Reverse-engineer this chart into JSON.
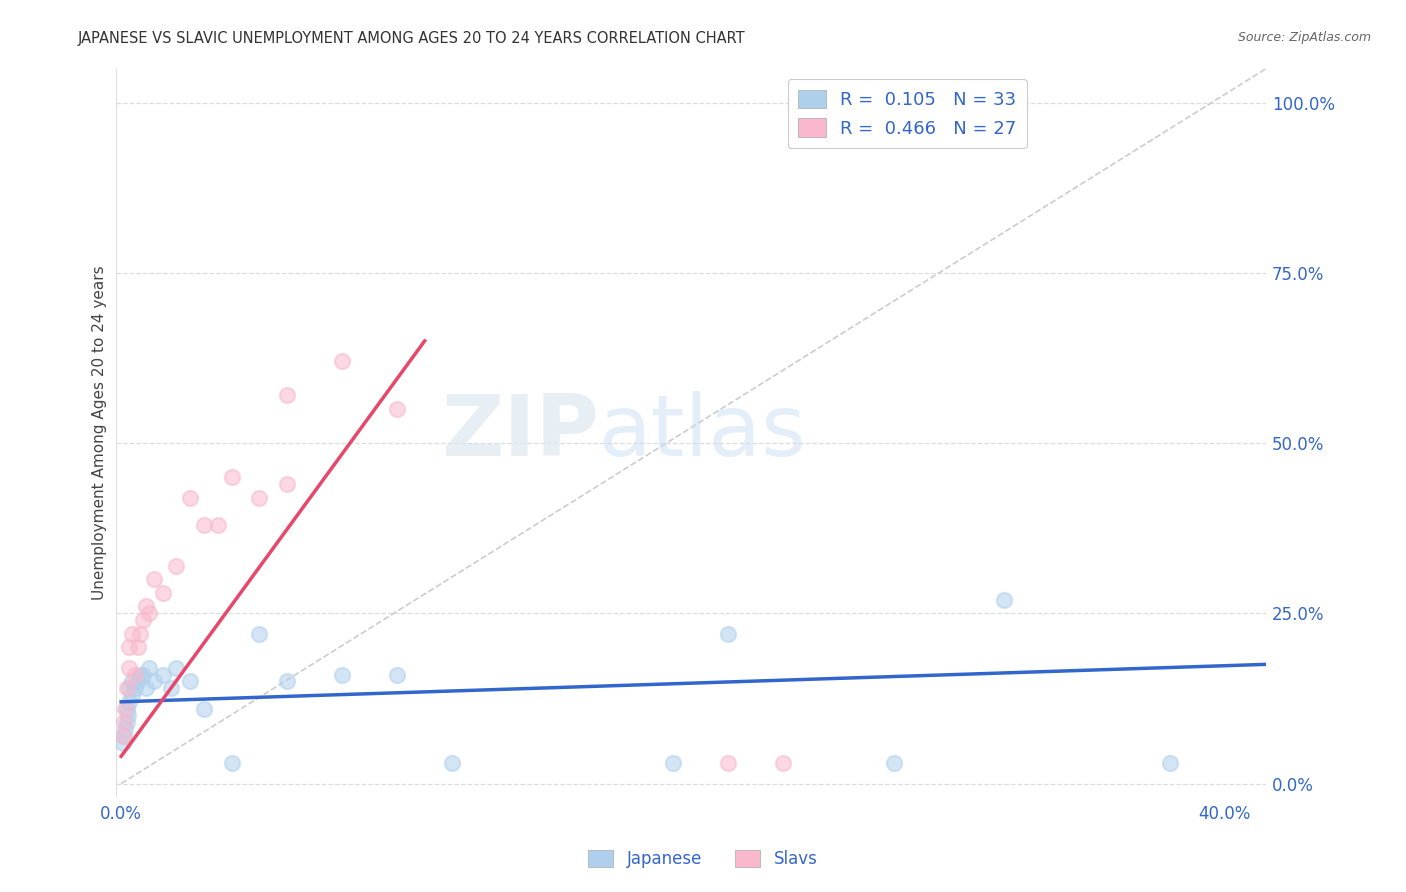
{
  "title": "JAPANESE VS SLAVIC UNEMPLOYMENT AMONG AGES 20 TO 24 YEARS CORRELATION CHART",
  "source": "Source: ZipAtlas.com",
  "ylabel": "Unemployment Among Ages 20 to 24 years",
  "xlabel_ticks": [
    "0.0%",
    "40.0%"
  ],
  "xlabel_vals": [
    0.0,
    0.4
  ],
  "ylabel_ticks": [
    "0.0%",
    "25.0%",
    "50.0%",
    "75.0%",
    "100.0%"
  ],
  "ylabel_vals": [
    0.0,
    0.25,
    0.5,
    0.75,
    1.0
  ],
  "xlim": [
    -0.002,
    0.415
  ],
  "ylim": [
    -0.02,
    1.05
  ],
  "japanese_R": 0.105,
  "japanese_N": 33,
  "slavic_R": 0.466,
  "slavic_N": 27,
  "japanese_color": "#afd0ec",
  "slavic_color": "#f9b8cc",
  "japanese_line_color": "#3366cc",
  "slavic_line_color": "#e8476a",
  "diagonal_color": "#cccccc",
  "legend_color": "#3366cc",
  "title_color": "#333333",
  "background_color": "#ffffff",
  "grid_color": "#dddddd",
  "japanese_x": [
    0.0005,
    0.001,
    0.0015,
    0.002,
    0.002,
    0.0025,
    0.003,
    0.003,
    0.004,
    0.004,
    0.005,
    0.006,
    0.007,
    0.008,
    0.009,
    0.01,
    0.012,
    0.015,
    0.018,
    0.02,
    0.025,
    0.03,
    0.04,
    0.05,
    0.06,
    0.08,
    0.1,
    0.12,
    0.2,
    0.22,
    0.28,
    0.32,
    0.38
  ],
  "japanese_y": [
    0.06,
    0.07,
    0.08,
    0.09,
    0.11,
    0.1,
    0.12,
    0.14,
    0.13,
    0.15,
    0.14,
    0.15,
    0.16,
    0.16,
    0.14,
    0.17,
    0.15,
    0.16,
    0.14,
    0.17,
    0.15,
    0.11,
    0.03,
    0.22,
    0.15,
    0.16,
    0.16,
    0.03,
    0.03,
    0.22,
    0.03,
    0.27,
    0.03
  ],
  "slavic_x": [
    0.0005,
    0.001,
    0.0015,
    0.002,
    0.003,
    0.003,
    0.004,
    0.005,
    0.006,
    0.007,
    0.008,
    0.009,
    0.01,
    0.012,
    0.015,
    0.02,
    0.025,
    0.03,
    0.035,
    0.04,
    0.05,
    0.06,
    0.06,
    0.08,
    0.1,
    0.22,
    0.24
  ],
  "slavic_y": [
    0.07,
    0.09,
    0.11,
    0.14,
    0.17,
    0.2,
    0.22,
    0.16,
    0.2,
    0.22,
    0.24,
    0.26,
    0.25,
    0.3,
    0.28,
    0.32,
    0.42,
    0.38,
    0.38,
    0.45,
    0.42,
    0.57,
    0.44,
    0.62,
    0.55,
    0.03,
    0.03
  ],
  "slavic_line_x0": 0.0,
  "slavic_line_y0": 0.04,
  "slavic_line_x1": 0.11,
  "slavic_line_y1": 0.65,
  "japanese_line_x0": 0.0,
  "japanese_line_y0": 0.12,
  "japanese_line_x1": 0.415,
  "japanese_line_y1": 0.175,
  "marker_size": 120,
  "alpha": 0.55,
  "watermark_zip": "ZIP",
  "watermark_atlas": "atlas",
  "legend_R1": "R = ",
  "legend_R1_val": "0.105",
  "legend_N1": "  N = ",
  "legend_N1_val": "33",
  "legend_R2": "R = ",
  "legend_R2_val": "0.466",
  "legend_N2": "  N = ",
  "legend_N2_val": "27"
}
